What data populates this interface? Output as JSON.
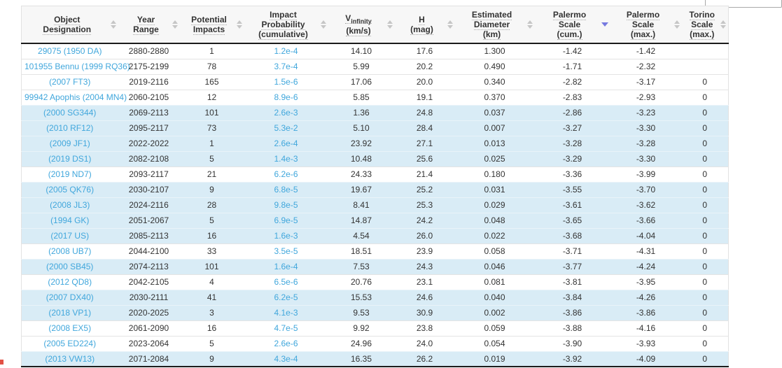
{
  "colors": {
    "link_blue": "#41a7dc",
    "row_highlight": "#d9ecf6",
    "header_bg": "#f7f7f7",
    "header_border_dark": "#1c1c1c",
    "sort_inactive": "#c6c6c6",
    "sort_active": "#7679e0",
    "text": "#333333"
  },
  "search": {
    "value": "",
    "placeholder": ""
  },
  "table": {
    "columns": [
      {
        "key": "object_designation",
        "width": 138,
        "lines": [
          "Object",
          "Designation"
        ],
        "sort": "none",
        "link": true
      },
      {
        "key": "year_range",
        "width": 88,
        "lines": [
          "Year",
          "Range"
        ],
        "sort": "none",
        "link": false
      },
      {
        "key": "potential_impacts",
        "width": 92,
        "lines": [
          "Potential",
          "Impacts"
        ],
        "sort": "none",
        "link": false
      },
      {
        "key": "impact_probability",
        "width": 120,
        "lines": [
          "Impact",
          "Probability",
          "(cumulative)"
        ],
        "sort": "none",
        "link": true
      },
      {
        "key": "v_infinity",
        "width": 95,
        "lines": [
          "V|infinity",
          "(km/s)"
        ],
        "sort": "none",
        "link": false
      },
      {
        "key": "h_mag",
        "width": 86,
        "lines": [
          "H",
          "(mag)"
        ],
        "sort": "none",
        "link": false
      },
      {
        "key": "estimated_diameter",
        "width": 114,
        "lines": [
          "Estimated",
          "Diameter",
          "(km)"
        ],
        "sort": "none",
        "link": false
      },
      {
        "key": "palermo_scale_cum",
        "width": 108,
        "lines": [
          "Palermo",
          "Scale",
          "(cum.)"
        ],
        "sort": "desc",
        "link": false
      },
      {
        "key": "palermo_scale_max",
        "width": 102,
        "lines": [
          "Palermo",
          "Scale",
          "(max.)"
        ],
        "sort": "none",
        "link": false
      },
      {
        "key": "torino_scale_max",
        "width": 67,
        "lines": [
          "Torino",
          "Scale",
          "(max.)"
        ],
        "sort": "none",
        "link": false
      }
    ],
    "rows": [
      {
        "highlight": false,
        "cells": [
          "29075 (1950 DA)",
          "2880-2880",
          "1",
          "1.2e-4",
          "14.10",
          "17.6",
          "1.300",
          "-1.42",
          "-1.42",
          ""
        ]
      },
      {
        "highlight": false,
        "cells": [
          "101955 Bennu (1999 RQ36)",
          "2175-2199",
          "78",
          "3.7e-4",
          "5.99",
          "20.2",
          "0.490",
          "-1.71",
          "-2.32",
          ""
        ]
      },
      {
        "highlight": false,
        "cells": [
          "(2007 FT3)",
          "2019-2116",
          "165",
          "1.5e-6",
          "17.06",
          "20.0",
          "0.340",
          "-2.82",
          "-3.17",
          "0"
        ]
      },
      {
        "highlight": false,
        "cells": [
          "99942 Apophis (2004 MN4)",
          "2060-2105",
          "12",
          "8.9e-6",
          "5.85",
          "19.1",
          "0.370",
          "-2.83",
          "-2.93",
          "0"
        ]
      },
      {
        "highlight": true,
        "cells": [
          "(2000 SG344)",
          "2069-2113",
          "101",
          "2.6e-3",
          "1.36",
          "24.8",
          "0.037",
          "-2.86",
          "-3.23",
          "0"
        ]
      },
      {
        "highlight": true,
        "cells": [
          "(2010 RF12)",
          "2095-2117",
          "73",
          "5.3e-2",
          "5.10",
          "28.4",
          "0.007",
          "-3.27",
          "-3.30",
          "0"
        ]
      },
      {
        "highlight": true,
        "cells": [
          "(2009 JF1)",
          "2022-2022",
          "1",
          "2.6e-4",
          "23.92",
          "27.1",
          "0.013",
          "-3.28",
          "-3.28",
          "0"
        ]
      },
      {
        "highlight": true,
        "cells": [
          "(2019 DS1)",
          "2082-2108",
          "5",
          "1.4e-3",
          "10.48",
          "25.6",
          "0.025",
          "-3.29",
          "-3.30",
          "0"
        ]
      },
      {
        "highlight": false,
        "cells": [
          "(2019 ND7)",
          "2093-2117",
          "21",
          "6.2e-6",
          "24.33",
          "21.4",
          "0.180",
          "-3.36",
          "-3.99",
          "0"
        ]
      },
      {
        "highlight": true,
        "cells": [
          "(2005 QK76)",
          "2030-2107",
          "9",
          "6.8e-5",
          "19.67",
          "25.2",
          "0.031",
          "-3.55",
          "-3.70",
          "0"
        ]
      },
      {
        "highlight": true,
        "cells": [
          "(2008 JL3)",
          "2024-2116",
          "28",
          "9.8e-5",
          "8.41",
          "25.3",
          "0.029",
          "-3.61",
          "-3.62",
          "0"
        ]
      },
      {
        "highlight": true,
        "cells": [
          "(1994 GK)",
          "2051-2067",
          "5",
          "6.9e-5",
          "14.87",
          "24.2",
          "0.048",
          "-3.65",
          "-3.66",
          "0"
        ]
      },
      {
        "highlight": true,
        "cells": [
          "(2017 US)",
          "2085-2113",
          "16",
          "1.6e-3",
          "4.54",
          "26.0",
          "0.022",
          "-3.68",
          "-4.04",
          "0"
        ]
      },
      {
        "highlight": false,
        "cells": [
          "(2008 UB7)",
          "2044-2100",
          "33",
          "3.5e-5",
          "18.51",
          "23.9",
          "0.058",
          "-3.71",
          "-4.31",
          "0"
        ]
      },
      {
        "highlight": true,
        "cells": [
          "(2000 SB45)",
          "2074-2113",
          "101",
          "1.6e-4",
          "7.53",
          "24.3",
          "0.046",
          "-3.77",
          "-4.24",
          "0"
        ]
      },
      {
        "highlight": false,
        "cells": [
          "(2012 QD8)",
          "2042-2105",
          "4",
          "6.5e-6",
          "20.76",
          "23.1",
          "0.081",
          "-3.81",
          "-3.95",
          "0"
        ]
      },
      {
        "highlight": true,
        "cells": [
          "(2007 DX40)",
          "2030-2111",
          "41",
          "6.2e-5",
          "15.53",
          "24.6",
          "0.040",
          "-3.84",
          "-4.26",
          "0"
        ]
      },
      {
        "highlight": true,
        "cells": [
          "(2018 VP1)",
          "2020-2025",
          "3",
          "4.1e-3",
          "9.53",
          "30.9",
          "0.002",
          "-3.86",
          "-3.86",
          "0"
        ]
      },
      {
        "highlight": false,
        "cells": [
          "(2008 EX5)",
          "2061-2090",
          "16",
          "4.7e-5",
          "9.92",
          "23.8",
          "0.059",
          "-3.88",
          "-4.16",
          "0"
        ]
      },
      {
        "highlight": false,
        "cells": [
          "(2005 ED224)",
          "2023-2064",
          "5",
          "2.6e-6",
          "24.96",
          "24.0",
          "0.054",
          "-3.90",
          "-3.93",
          "0"
        ]
      },
      {
        "highlight": true,
        "cells": [
          "(2013 VW13)",
          "2071-2084",
          "9",
          "4.3e-4",
          "16.35",
          "26.2",
          "0.019",
          "-3.92",
          "-4.09",
          "0"
        ]
      }
    ]
  }
}
